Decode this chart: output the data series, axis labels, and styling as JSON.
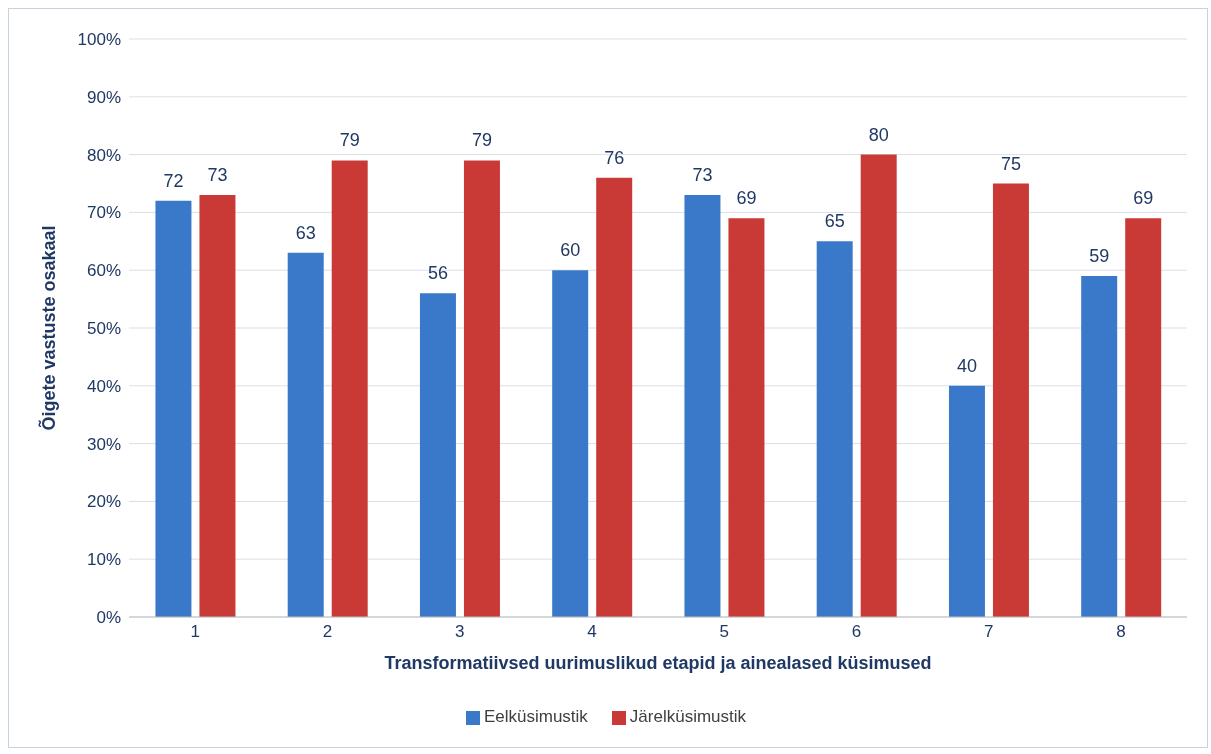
{
  "chart_data": {
    "type": "bar",
    "xlabel": "Transformatiivsed uurimuslikud etapid ja ainealased küsimused",
    "ylabel": "Õigete vastuste osakaal",
    "categories": [
      "1",
      "2",
      "3",
      "4",
      "5",
      "6",
      "7",
      "8"
    ],
    "series": [
      {
        "name": "Eelküsimustik",
        "color": "#3a78c9",
        "values": [
          72,
          63,
          56,
          60,
          73,
          65,
          40,
          59
        ]
      },
      {
        "name": "Järelküsimustik",
        "color": "#c93a36",
        "values": [
          73,
          79,
          79,
          76,
          69,
          80,
          75,
          69
        ]
      }
    ],
    "ylim": [
      0,
      100
    ],
    "yticks": [
      {
        "value": 0,
        "label": "0%"
      },
      {
        "value": 10,
        "label": "10%"
      },
      {
        "value": 20,
        "label": "20%"
      },
      {
        "value": 30,
        "label": "30%"
      },
      {
        "value": 40,
        "label": "40%"
      },
      {
        "value": 50,
        "label": "50%"
      },
      {
        "value": 60,
        "label": "60%"
      },
      {
        "value": 70,
        "label": "70%"
      },
      {
        "value": 80,
        "label": "80%"
      },
      {
        "value": 90,
        "label": "90%"
      },
      {
        "value": 100,
        "label": "100%"
      }
    ],
    "grid": "y",
    "legend": "bottom",
    "data_labels": true
  }
}
